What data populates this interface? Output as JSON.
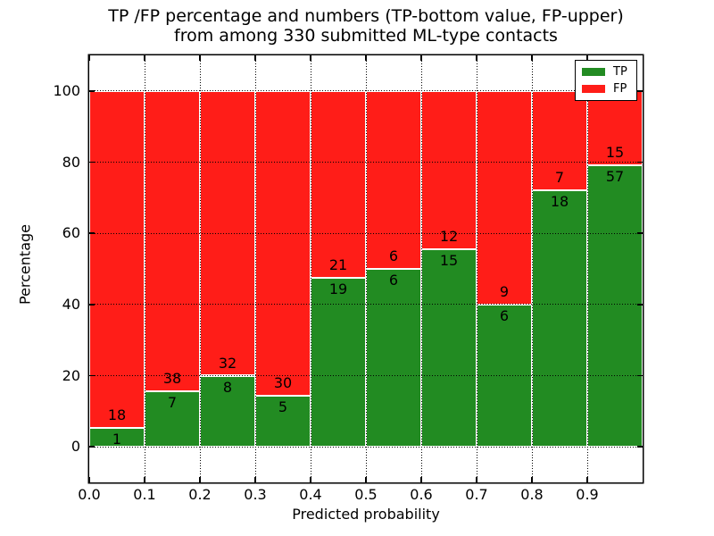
{
  "chart_data": {
    "type": "bar",
    "stacked": true,
    "unit": "percent",
    "title": "TP /FP percentage and numbers (TP-bottom value, FP-upper)\nfrom among 330 submitted ML-type contacts",
    "title_line1": "TP /FP percentage and numbers (TP-bottom value, FP-upper)",
    "title_line2": "from among 330 submitted ML-type contacts",
    "xlabel": "Predicted probability",
    "ylabel": "Percentage",
    "total_contacts": 330,
    "x_bin_starts": [
      0.0,
      0.1,
      0.2,
      0.3,
      0.4,
      0.5,
      0.6,
      0.7,
      0.8,
      0.9
    ],
    "x_bin_width": 0.1,
    "series": [
      {
        "name": "TP",
        "color": "#228b22",
        "counts": [
          1,
          7,
          8,
          5,
          19,
          6,
          15,
          6,
          18,
          57
        ]
      },
      {
        "name": "FP",
        "color": "#ff1d18",
        "counts": [
          18,
          38,
          32,
          30,
          21,
          6,
          12,
          9,
          7,
          15
        ]
      }
    ],
    "tp_percent_of_bin": [
      5.26,
      15.56,
      20.0,
      14.29,
      47.5,
      50.0,
      55.56,
      40.0,
      72.0,
      79.17
    ],
    "xticks": [
      "0.0",
      "0.1",
      "0.2",
      "0.3",
      "0.4",
      "0.5",
      "0.6",
      "0.7",
      "0.8",
      "0.9"
    ],
    "yticks": [
      0,
      20,
      40,
      60,
      80,
      100
    ],
    "xlim": [
      0.0,
      1.0
    ],
    "ylim": [
      -10,
      110
    ],
    "grid": {
      "style": "dotted",
      "color": "#000000",
      "on_top": true
    },
    "bar_edge_color": "#ffffff",
    "legend": {
      "position": "upper right",
      "entries": [
        {
          "label": "TP",
          "color": "#228b22"
        },
        {
          "label": "FP",
          "color": "#ff1d18"
        }
      ]
    }
  }
}
